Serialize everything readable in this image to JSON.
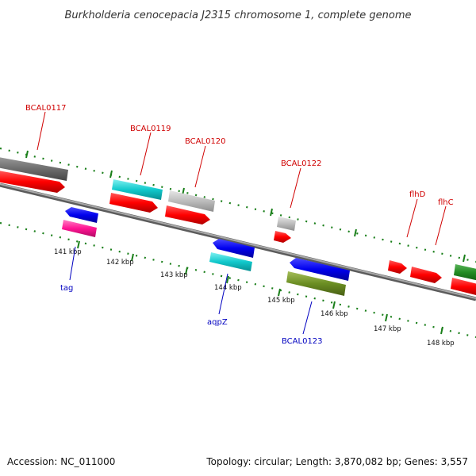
{
  "title": "Burkholderia cenocepacia J2315 chromosome 1, complete genome",
  "footer": {
    "accession": "Accession: NC_011000",
    "summary": "Topology: circular; Length: 3,870,082 bp; Genes: 3,557"
  },
  "colors": {
    "backbone": "#808080",
    "tick": "#1a7f1a",
    "label_top": "#d00000",
    "label_bottom": "#0000c0"
  },
  "ticks": [
    "141 kbp",
    "142 kbp",
    "143 kbp",
    "144 kbp",
    "145 kbp",
    "146 kbp",
    "147 kbp",
    "148 kbp"
  ],
  "gene_labels_top": [
    "BCAL0117",
    "BCAL0119",
    "BCAL0120",
    "BCAL0122",
    "flhD",
    "flhC"
  ],
  "gene_labels_bottom": [
    "tag",
    "aqpZ",
    "BCAL0123"
  ]
}
